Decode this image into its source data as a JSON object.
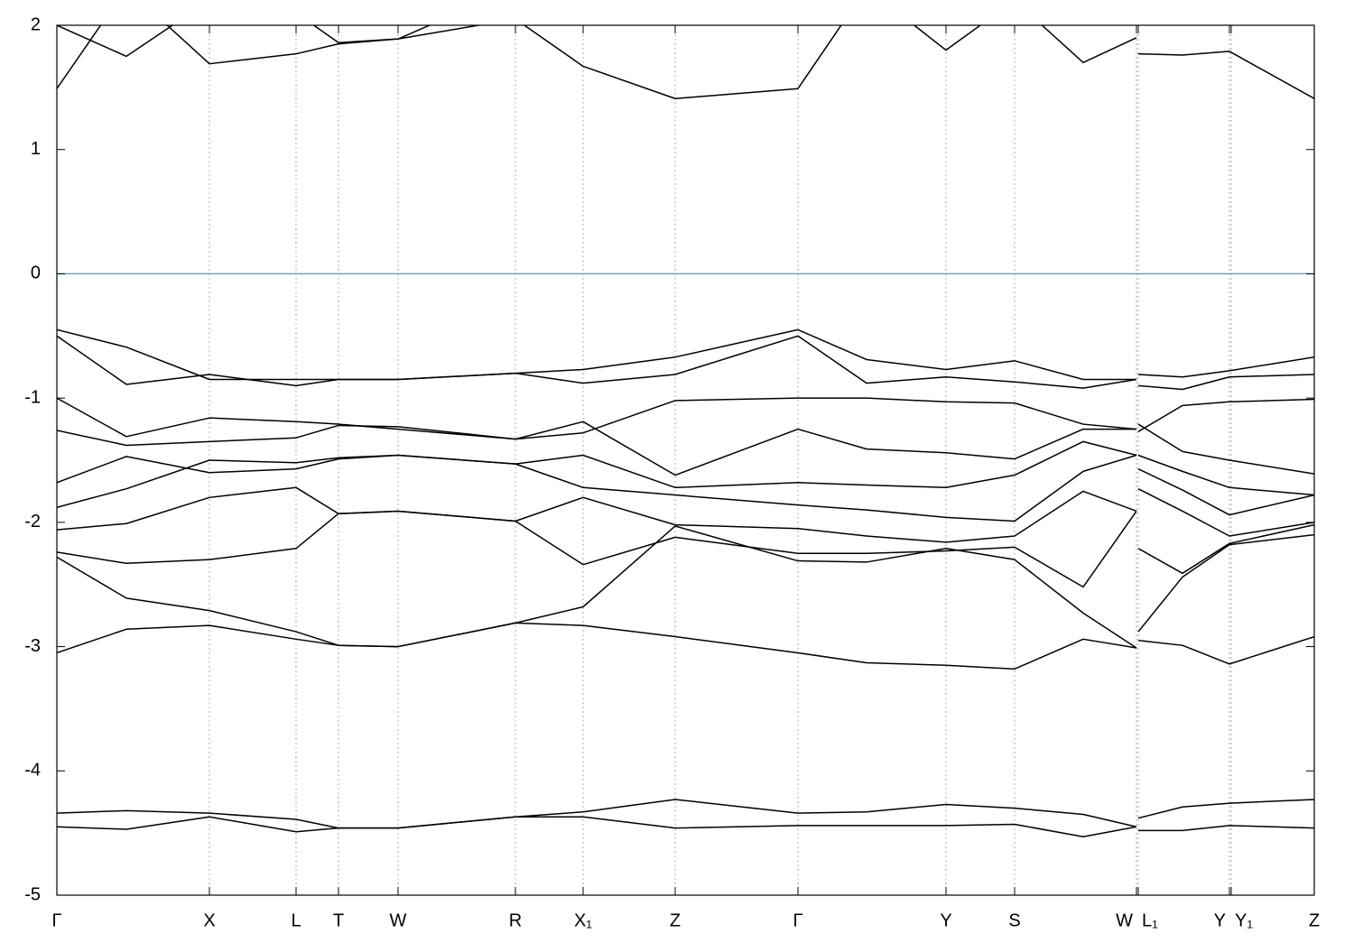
{
  "chart_data": {
    "type": "line",
    "x": [
      0,
      0.77,
      1.69,
      2.65,
      3.12,
      3.78,
      5.08,
      5.83,
      6.85,
      8.21,
      8.97,
      9.85,
      10.61,
      11.37,
      11.96,
      11.97,
      11.98,
      12.47,
      12.99,
      13.93
    ],
    "xlim": [
      0,
      13.93
    ],
    "ylim": [
      -5,
      2
    ],
    "yticks": [
      -5,
      -4,
      -3,
      -2,
      -1,
      0,
      1,
      2
    ],
    "xticks": [
      {
        "value": 0,
        "label": "Γ"
      },
      {
        "value": 1.69,
        "label": "X"
      },
      {
        "value": 2.65,
        "label": "L"
      },
      {
        "value": 3.12,
        "label": "T"
      },
      {
        "value": 3.78,
        "label": "W"
      },
      {
        "value": 5.08,
        "label": "R"
      },
      {
        "value": 5.83,
        "label": "X₁"
      },
      {
        "value": 6.85,
        "label": "Z"
      },
      {
        "value": 8.21,
        "label": "Γ"
      },
      {
        "value": 9.85,
        "label": "Y"
      },
      {
        "value": 10.61,
        "label": "S"
      },
      {
        "value": 11.96,
        "label": "W"
      },
      {
        "value": 11.98,
        "label": "L₁"
      },
      {
        "value": 12.99,
        "label": "Y"
      },
      {
        "value": 13.01,
        "label": "Y₁"
      },
      {
        "value": 13.93,
        "label": "Z"
      }
    ],
    "xgrid": true,
    "hlines": [
      {
        "value": 0,
        "color": "#5aaec8"
      }
    ],
    "series": [
      {
        "color": "#000000",
        "values": [
          -4.45,
          -4.47,
          -4.37,
          -4.49,
          -4.46,
          -4.46,
          -4.37,
          -4.37,
          -4.46,
          -4.44,
          -4.44,
          -4.44,
          -4.43,
          -4.53,
          -4.45,
          null,
          -4.48,
          -4.48,
          -4.44,
          -4.46
        ]
      },
      {
        "color": "#000000",
        "values": [
          -4.34,
          -4.32,
          -4.34,
          -4.39,
          -4.46,
          -4.46,
          -4.37,
          -4.33,
          -4.23,
          -4.34,
          -4.33,
          -4.27,
          -4.3,
          -4.35,
          -4.45,
          null,
          -4.38,
          -4.29,
          -4.26,
          -4.23
        ]
      },
      {
        "color": "#000000",
        "values": [
          -3.05,
          -2.86,
          -2.83,
          -2.94,
          -2.99,
          -3.0,
          -2.81,
          -2.83,
          -2.92,
          -3.05,
          -3.13,
          -3.15,
          -3.18,
          -2.94,
          -3.01,
          null,
          -2.95,
          -2.99,
          -3.14,
          -2.92
        ]
      },
      {
        "color": "#000000",
        "values": [
          -2.28,
          -2.61,
          -2.71,
          -2.88,
          -2.99,
          -3.0,
          -2.81,
          -2.68,
          -2.03,
          -2.31,
          -2.32,
          -2.21,
          -2.3,
          -2.73,
          -3.01,
          null,
          -2.88,
          -2.44,
          -2.18,
          -2.1
        ]
      },
      {
        "color": "#000000",
        "values": [
          -2.24,
          -2.33,
          -2.3,
          -2.21,
          -1.93,
          -1.91,
          -1.99,
          -2.34,
          -2.12,
          -2.25,
          -2.25,
          -2.23,
          -2.2,
          -2.52,
          -1.91,
          null,
          -2.21,
          -2.41,
          -2.17,
          -2.02
        ]
      },
      {
        "color": "#000000",
        "values": [
          -2.06,
          -2.01,
          -1.8,
          -1.72,
          -1.93,
          -1.91,
          -1.99,
          -1.8,
          -2.02,
          -2.05,
          -2.11,
          -2.16,
          -2.11,
          -1.75,
          -1.91,
          null,
          -1.73,
          -1.91,
          -2.11,
          -2.0
        ]
      },
      {
        "color": "#000000",
        "values": [
          -1.88,
          -1.73,
          -1.5,
          -1.52,
          -1.48,
          -1.46,
          -1.53,
          -1.72,
          -1.78,
          -1.86,
          -1.9,
          -1.96,
          -1.99,
          -1.59,
          -1.46,
          null,
          -1.57,
          -1.74,
          -1.94,
          -1.78
        ]
      },
      {
        "color": "#000000",
        "values": [
          -1.68,
          -1.47,
          -1.6,
          -1.57,
          -1.49,
          -1.46,
          -1.53,
          -1.46,
          -1.72,
          -1.68,
          -1.7,
          -1.72,
          -1.62,
          -1.35,
          -1.46,
          null,
          -1.46,
          -1.59,
          -1.72,
          -1.78
        ]
      },
      {
        "color": "#000000",
        "values": [
          -1.26,
          -1.38,
          -1.35,
          -1.32,
          -1.22,
          -1.23,
          -1.33,
          -1.19,
          -1.62,
          -1.25,
          -1.41,
          -1.44,
          -1.49,
          -1.25,
          -1.25,
          null,
          -1.21,
          -1.43,
          -1.5,
          -1.61
        ]
      },
      {
        "color": "#000000",
        "values": [
          -1.0,
          -1.31,
          -1.16,
          -1.19,
          -1.21,
          -1.25,
          -1.33,
          -1.28,
          -1.02,
          -1.0,
          -1.0,
          -1.03,
          -1.04,
          -1.21,
          -1.25,
          null,
          -1.27,
          -1.06,
          -1.03,
          -1.01
        ]
      },
      {
        "color": "#000000",
        "values": [
          -0.5,
          -0.89,
          -0.81,
          -0.9,
          -0.85,
          -0.85,
          -0.8,
          -0.88,
          -0.81,
          -0.5,
          -0.88,
          -0.83,
          -0.87,
          -0.92,
          -0.85,
          null,
          -0.9,
          -0.93,
          -0.83,
          -0.81
        ]
      },
      {
        "color": "#000000",
        "values": [
          -0.45,
          -0.59,
          -0.85,
          -0.85,
          -0.85,
          -0.85,
          -0.8,
          -0.77,
          -0.67,
          -0.45,
          -0.69,
          -0.77,
          -0.7,
          -0.85,
          -0.85,
          null,
          -0.81,
          -0.83,
          -0.78,
          -0.67
        ]
      },
      {
        "color": "#000000",
        "values": [
          1.49,
          2.3,
          1.69,
          1.77,
          1.85,
          1.89,
          2.05,
          1.67,
          1.41,
          1.49,
          2.3,
          1.8,
          2.2,
          1.7,
          1.9,
          null,
          1.77,
          1.76,
          1.79,
          1.41
        ]
      },
      {
        "color": "#000000",
        "values": [
          2.0,
          1.75,
          2.2,
          2.1,
          1.86,
          1.89,
          2.3,
          2.3,
          2.3,
          2.3,
          2.3,
          2.3,
          2.3,
          2.3,
          2.3,
          null,
          2.3,
          2.3,
          2.3,
          2.3
        ]
      }
    ]
  }
}
